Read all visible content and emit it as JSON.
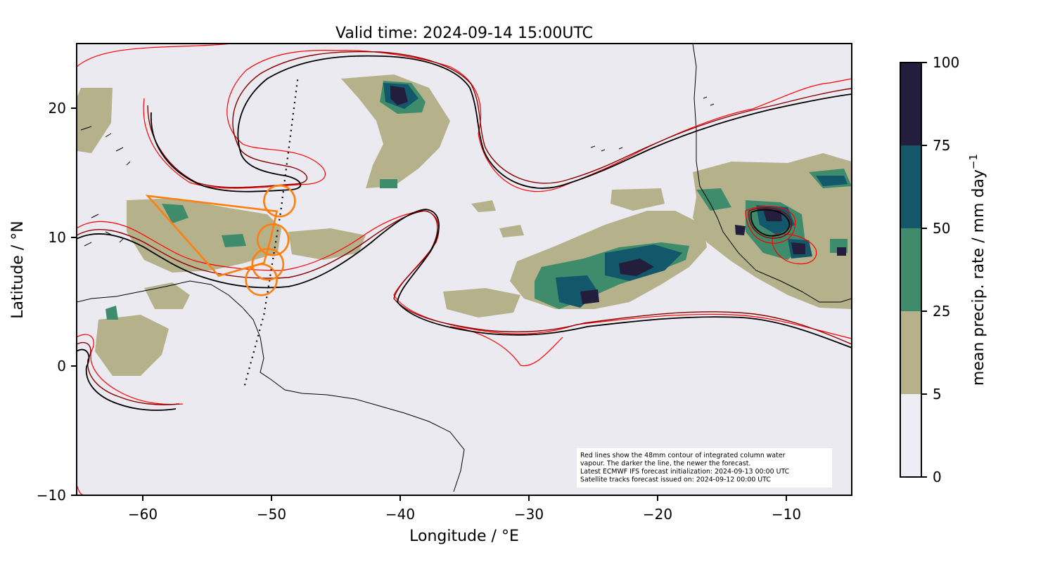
{
  "title": "Valid time: 2024-09-14 15:00UTC",
  "xlabel": "Longitude / °E",
  "ylabel": "Latitude / °N",
  "x_ticks": [
    "−60",
    "−50",
    "−40",
    "−30",
    "−20",
    "−10"
  ],
  "y_ticks": [
    "20",
    "10",
    "0",
    "−10"
  ],
  "colorbar": {
    "label": "mean precip. rate / mm day",
    "label_superscript": "−1",
    "ticks": [
      "100",
      "75",
      "50",
      "25",
      "5",
      "0"
    ],
    "colors": [
      "#eeedf3",
      "#b5b28b",
      "#3f8c6c",
      "#13576a",
      "#221e3b"
    ]
  },
  "annotation_lines": [
    "Red lines show the 48mm contour of integrated column water",
    "vapour. The darker the line, the newer the forecast.",
    "Latest ECMWF IFS forecast initialization: 2024-09-13 00:00 UTC",
    "Satellite tracks forecast issued on: 2024-09-12 00:00 UTC"
  ],
  "colors": {
    "ocean_background": "#ebeaf1",
    "flight_track": "#ff7f0e",
    "iwv_old": "#ff0000",
    "iwv_mid": "#8b0000",
    "iwv_new": "#000000"
  },
  "map_extent": {
    "lon": [
      -65,
      -5
    ],
    "lat": [
      -10,
      25
    ]
  },
  "flight_track": {
    "polygon": [
      [
        -59.5,
        13.2
      ],
      [
        -49.5,
        12.0
      ],
      [
        -50.0,
        9.8
      ],
      [
        -50.5,
        8.0
      ],
      [
        -54,
        7.0
      ]
    ],
    "circles": [
      {
        "lon": -49.3,
        "lat": 12.8
      },
      {
        "lon": -49.8,
        "lat": 9.8
      },
      {
        "lon": -50.2,
        "lat": 7.9
      },
      {
        "lon": -50.7,
        "lat": 6.7
      }
    ]
  },
  "satellite_track": [
    [
      -47.9,
      22.2
    ],
    [
      -49.2,
      12.0
    ],
    [
      -50.5,
      4.0
    ],
    [
      -52.0,
      -1.5
    ]
  ]
}
